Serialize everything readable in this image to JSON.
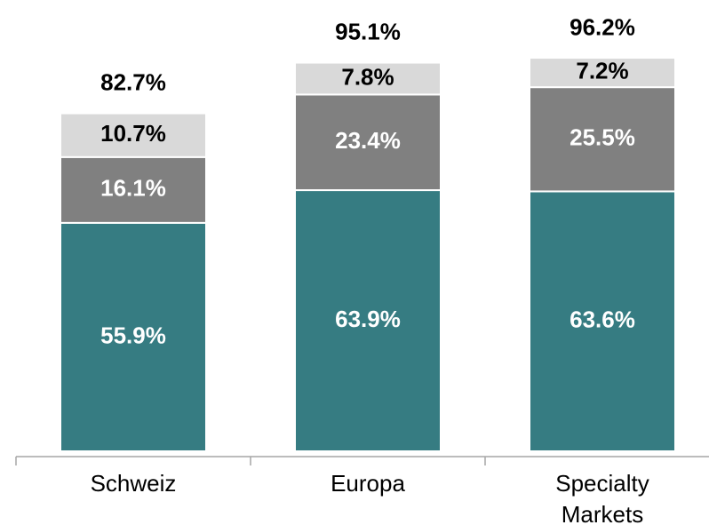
{
  "chart_data": {
    "type": "stacked-bar",
    "categories": [
      "Schweiz",
      "Europa",
      "Specialty Markets"
    ],
    "series": [
      {
        "color": "#367c82",
        "label_color": "#ffffff",
        "values": [
          55.9,
          63.9,
          63.6
        ],
        "value_labels": [
          "55.9%",
          "63.9%",
          "63.6%"
        ]
      },
      {
        "color": "#808080",
        "label_color": "#ffffff",
        "values": [
          16.1,
          23.4,
          25.5
        ],
        "value_labels": [
          "16.1%",
          "23.4%",
          "25.5%"
        ]
      },
      {
        "color": "#d9d9d9",
        "label_color": "#000000",
        "values": [
          10.7,
          7.8,
          7.2
        ],
        "value_labels": [
          "10.7%",
          "7.8%",
          "7.2%"
        ]
      }
    ],
    "totals": {
      "values": [
        82.7,
        95.1,
        96.2
      ],
      "value_labels": [
        "82.7%",
        "95.1%",
        "96.2%"
      ]
    }
  }
}
